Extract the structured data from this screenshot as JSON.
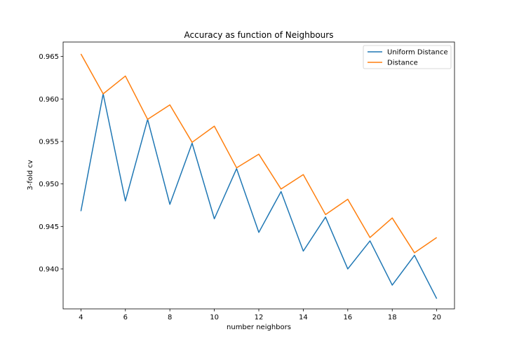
{
  "chart_data": {
    "type": "line",
    "title": "Accuracy as function of Neighbours",
    "xlabel": "number neighbors",
    "ylabel": "3-fold cv",
    "x": [
      4,
      5,
      6,
      7,
      8,
      9,
      10,
      11,
      12,
      13,
      14,
      15,
      16,
      17,
      18,
      19,
      20
    ],
    "xlim": [
      3.2,
      20.8
    ],
    "ylim": [
      0.9353,
      0.9667
    ],
    "xticks": [
      4,
      6,
      8,
      10,
      12,
      14,
      16,
      18,
      20
    ],
    "yticks": [
      0.94,
      0.945,
      0.95,
      0.955,
      0.96,
      0.965
    ],
    "xtick_labels": [
      "4",
      "6",
      "8",
      "10",
      "12",
      "14",
      "16",
      "18",
      "20"
    ],
    "ytick_labels": [
      "0.940",
      "0.945",
      "0.950",
      "0.955",
      "0.960",
      "0.965"
    ],
    "grid": false,
    "legend_position": "top-right",
    "series": [
      {
        "name": "Uniform Distance",
        "color": "#1f77b4",
        "values": [
          0.9468,
          0.9606,
          0.948,
          0.9576,
          0.9476,
          0.9548,
          0.9459,
          0.9518,
          0.9443,
          0.9491,
          0.9421,
          0.9461,
          0.94,
          0.9433,
          0.9381,
          0.9416,
          0.9365
        ]
      },
      {
        "name": "Distance",
        "color": "#ff7f0e",
        "values": [
          0.9653,
          0.9606,
          0.9627,
          0.9576,
          0.9593,
          0.9549,
          0.9568,
          0.9519,
          0.9535,
          0.9494,
          0.9511,
          0.9464,
          0.9482,
          0.9437,
          0.946,
          0.9419,
          0.9437
        ]
      }
    ]
  }
}
